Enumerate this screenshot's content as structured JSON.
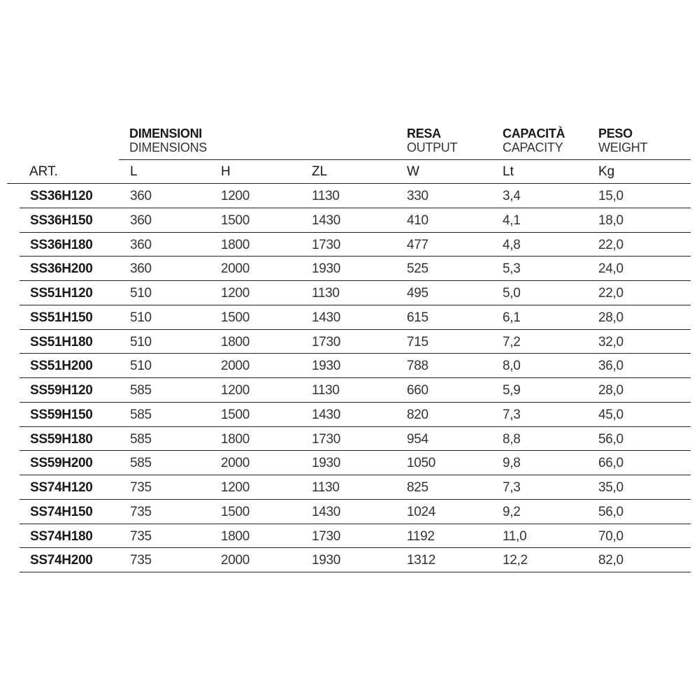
{
  "headers": {
    "dimensions_it": "DIMENSIONI",
    "dimensions_en": "DIMENSIONS",
    "output_it": "RESA",
    "output_en": "OUTPUT",
    "capacity_it": "CAPACITÀ",
    "capacity_en": "CAPACITY",
    "weight_it": "PESO",
    "weight_en": "WEIGHT"
  },
  "columns": [
    "ART.",
    "L",
    "H",
    "ZL",
    "W",
    "Lt",
    "Kg"
  ],
  "rows": [
    [
      "SS36H120",
      "360",
      "1200",
      "1130",
      "330",
      "3,4",
      "15,0"
    ],
    [
      "SS36H150",
      "360",
      "1500",
      "1430",
      "410",
      "4,1",
      "18,0"
    ],
    [
      "SS36H180",
      "360",
      "1800",
      "1730",
      "477",
      "4,8",
      "22,0"
    ],
    [
      "SS36H200",
      "360",
      "2000",
      "1930",
      "525",
      "5,3",
      "24,0"
    ],
    [
      "SS51H120",
      "510",
      "1200",
      "1130",
      "495",
      "5,0",
      "22,0"
    ],
    [
      "SS51H150",
      "510",
      "1500",
      "1430",
      "615",
      "6,1",
      "28,0"
    ],
    [
      "SS51H180",
      "510",
      "1800",
      "1730",
      "715",
      "7,2",
      "32,0"
    ],
    [
      "SS51H200",
      "510",
      "2000",
      "1930",
      "788",
      "8,0",
      "36,0"
    ],
    [
      "SS59H120",
      "585",
      "1200",
      "1130",
      "660",
      "5,9",
      "28,0"
    ],
    [
      "SS59H150",
      "585",
      "1500",
      "1430",
      "820",
      "7,3",
      "45,0"
    ],
    [
      "SS59H180",
      "585",
      "1800",
      "1730",
      "954",
      "8,8",
      "56,0"
    ],
    [
      "SS59H200",
      "585",
      "2000",
      "1930",
      "1050",
      "9,8",
      "66,0"
    ],
    [
      "SS74H120",
      "735",
      "1200",
      "1130",
      "825",
      "7,3",
      "35,0"
    ],
    [
      "SS74H150",
      "735",
      "1500",
      "1430",
      "1024",
      "9,2",
      "56,0"
    ],
    [
      "SS74H180",
      "735",
      "1800",
      "1730",
      "1192",
      "11,0",
      "70,0"
    ],
    [
      "SS74H200",
      "735",
      "2000",
      "1930",
      "1312",
      "12,2",
      "82,0"
    ]
  ]
}
